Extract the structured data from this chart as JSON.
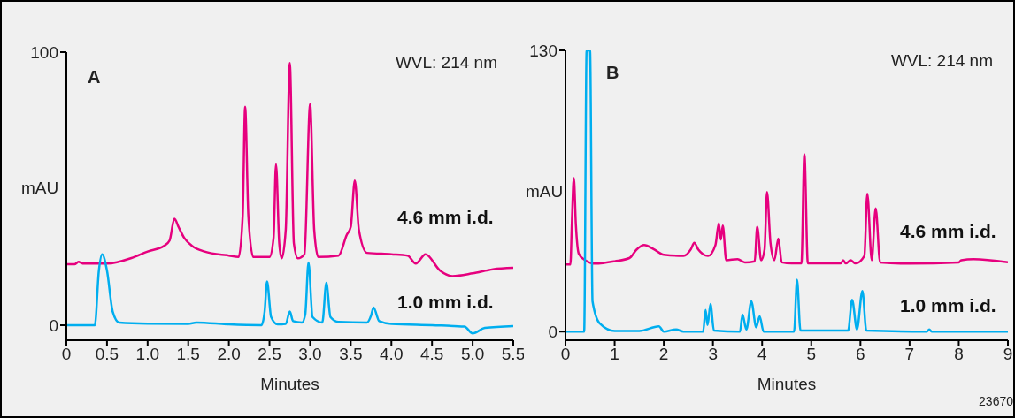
{
  "chart_data": [
    {
      "type": "line",
      "xlabel": "Minutes",
      "ylabel": "mAU",
      "annotations": [
        "A",
        "WVL: 214 nm"
      ],
      "xlim": [
        0,
        5.5
      ],
      "ylim": [
        -5.5,
        100
      ],
      "xticks": [
        0,
        0.5,
        {
          "value": 1,
          "label": "1.0"
        },
        1.5,
        {
          "value": 2,
          "label": "2.0"
        },
        2.5,
        {
          "value": 3,
          "label": "3.0"
        },
        3.5,
        {
          "value": 4,
          "label": "4.0"
        },
        4.5,
        {
          "value": 5,
          "label": "5.0"
        },
        5.5
      ],
      "yticks": [
        0,
        100
      ],
      "grid": false,
      "legend": false,
      "marker": "none",
      "line_style": "solid",
      "series": [
        {
          "name": "4.6 mm i.d.",
          "color": "#e6007e",
          "x": [
            0,
            0.1,
            0.15,
            0.2,
            0.5,
            0.8,
            1.0,
            1.2,
            1.27,
            1.33,
            1.38,
            1.45,
            1.55,
            1.7,
            2.0,
            2.12,
            2.17,
            2.2,
            2.24,
            2.3,
            2.5,
            2.55,
            2.58,
            2.62,
            2.65,
            2.7,
            2.75,
            2.8,
            2.85,
            2.93,
            3.0,
            3.05,
            3.1,
            3.35,
            3.45,
            3.5,
            3.55,
            3.6,
            3.7,
            4.0,
            4.2,
            4.3,
            4.42,
            4.6,
            4.75,
            5.0,
            5.25,
            5.5
          ],
          "values": [
            22.3,
            22.3,
            23.2,
            22.6,
            22.6,
            24.6,
            27,
            29,
            31,
            39,
            36,
            32,
            29,
            27,
            25.5,
            25,
            40,
            80,
            40,
            25,
            25,
            32,
            59,
            30,
            24.5,
            35,
            96,
            30,
            24.5,
            26,
            81,
            35,
            25,
            25.5,
            33,
            36,
            53,
            35,
            26.5,
            26,
            25.5,
            22.6,
            26,
            20,
            18,
            19,
            20.5,
            21
          ]
        },
        {
          "name": "1.0 mm i.d.",
          "color": "#00aeef",
          "x": [
            0,
            0.35,
            0.4,
            0.44,
            0.5,
            0.57,
            0.65,
            1.0,
            1.5,
            1.6,
            2.0,
            2.4,
            2.44,
            2.47,
            2.52,
            2.6,
            2.7,
            2.75,
            2.79,
            2.9,
            2.94,
            2.98,
            3.03,
            3.15,
            3.2,
            3.25,
            3.35,
            3.7,
            3.75,
            3.78,
            3.85,
            4.0,
            4.5,
            4.9,
            5.0,
            5.15,
            5.5
          ],
          "values": [
            0,
            0,
            20,
            26,
            20,
            5,
            1,
            0.6,
            0.5,
            1,
            0.3,
            0,
            5,
            16,
            3,
            0.3,
            0.5,
            5,
            1.5,
            1,
            4,
            23,
            3,
            1,
            15.5,
            3,
            1.2,
            1,
            3.5,
            6.5,
            1.5,
            0.5,
            0,
            -0.5,
            -3,
            -1,
            -0.3
          ]
        }
      ]
    },
    {
      "type": "line",
      "xlabel": "Minutes",
      "ylabel": "mAU",
      "annotations": [
        "B",
        "WVL: 214 nm",
        "23670"
      ],
      "xlim": [
        0,
        9
      ],
      "ylim": [
        -4,
        130
      ],
      "xticks": [
        0,
        1,
        2,
        3,
        4,
        5,
        6,
        7,
        8,
        9
      ],
      "yticks": [
        0,
        130
      ],
      "grid": false,
      "legend": false,
      "marker": "none",
      "line_style": "solid",
      "series": [
        {
          "name": "4.6 mm i.d.",
          "color": "#e6007e",
          "x": [
            0,
            0.1,
            0.13,
            0.17,
            0.21,
            0.27,
            0.4,
            0.6,
            1.0,
            1.3,
            1.45,
            1.6,
            1.8,
            2.0,
            2.4,
            2.55,
            2.62,
            2.7,
            2.9,
            3.05,
            3.12,
            3.16,
            3.2,
            3.27,
            3.5,
            3.65,
            3.85,
            3.9,
            3.98,
            4.05,
            4.1,
            4.17,
            4.25,
            4.33,
            4.4,
            4.6,
            4.8,
            4.86,
            4.93,
            5.6,
            5.65,
            5.7,
            5.8,
            5.9,
            6.08,
            6.14,
            6.23,
            6.31,
            6.4,
            7.0,
            8.0,
            8.05,
            8.3,
            9.0
          ],
          "values": [
            31,
            31,
            50,
            71,
            50,
            36,
            33,
            31.4,
            32.5,
            34,
            38,
            40,
            38,
            35.5,
            35,
            38,
            41,
            38,
            35,
            40,
            50,
            42.5,
            49,
            33,
            33.5,
            32,
            32.5,
            48.5,
            33,
            38,
            64.5,
            41,
            33,
            43,
            32,
            31.5,
            31.5,
            82,
            31.5,
            31.5,
            33,
            31.5,
            33,
            31.5,
            35,
            63.7,
            33,
            57,
            32,
            31.4,
            32,
            33,
            33.5,
            32
          ]
        },
        {
          "name": "1.0 mm i.d.",
          "color": "#00aeef",
          "x": [
            0,
            0.38,
            0.43,
            0.5,
            0.55,
            0.7,
            1.0,
            1.5,
            1.9,
            2.0,
            2.25,
            2.4,
            2.8,
            2.85,
            2.89,
            2.95,
            3.02,
            3.55,
            3.6,
            3.68,
            3.78,
            3.88,
            3.95,
            4.03,
            4.65,
            4.71,
            4.78,
            5.75,
            5.83,
            5.93,
            6.04,
            6.12,
            7.35,
            7.4,
            7.45,
            9.0
          ],
          "values": [
            0,
            0,
            130,
            130,
            14,
            3.7,
            0.3,
            0.3,
            2.4,
            0,
            1,
            0,
            0,
            10,
            3,
            12.7,
            0.5,
            0,
            7.8,
            1,
            14,
            2,
            7,
            0,
            0,
            24,
            0.5,
            0.5,
            14.7,
            1,
            18.8,
            0.5,
            0,
            1,
            0,
            0
          ]
        }
      ]
    }
  ]
}
